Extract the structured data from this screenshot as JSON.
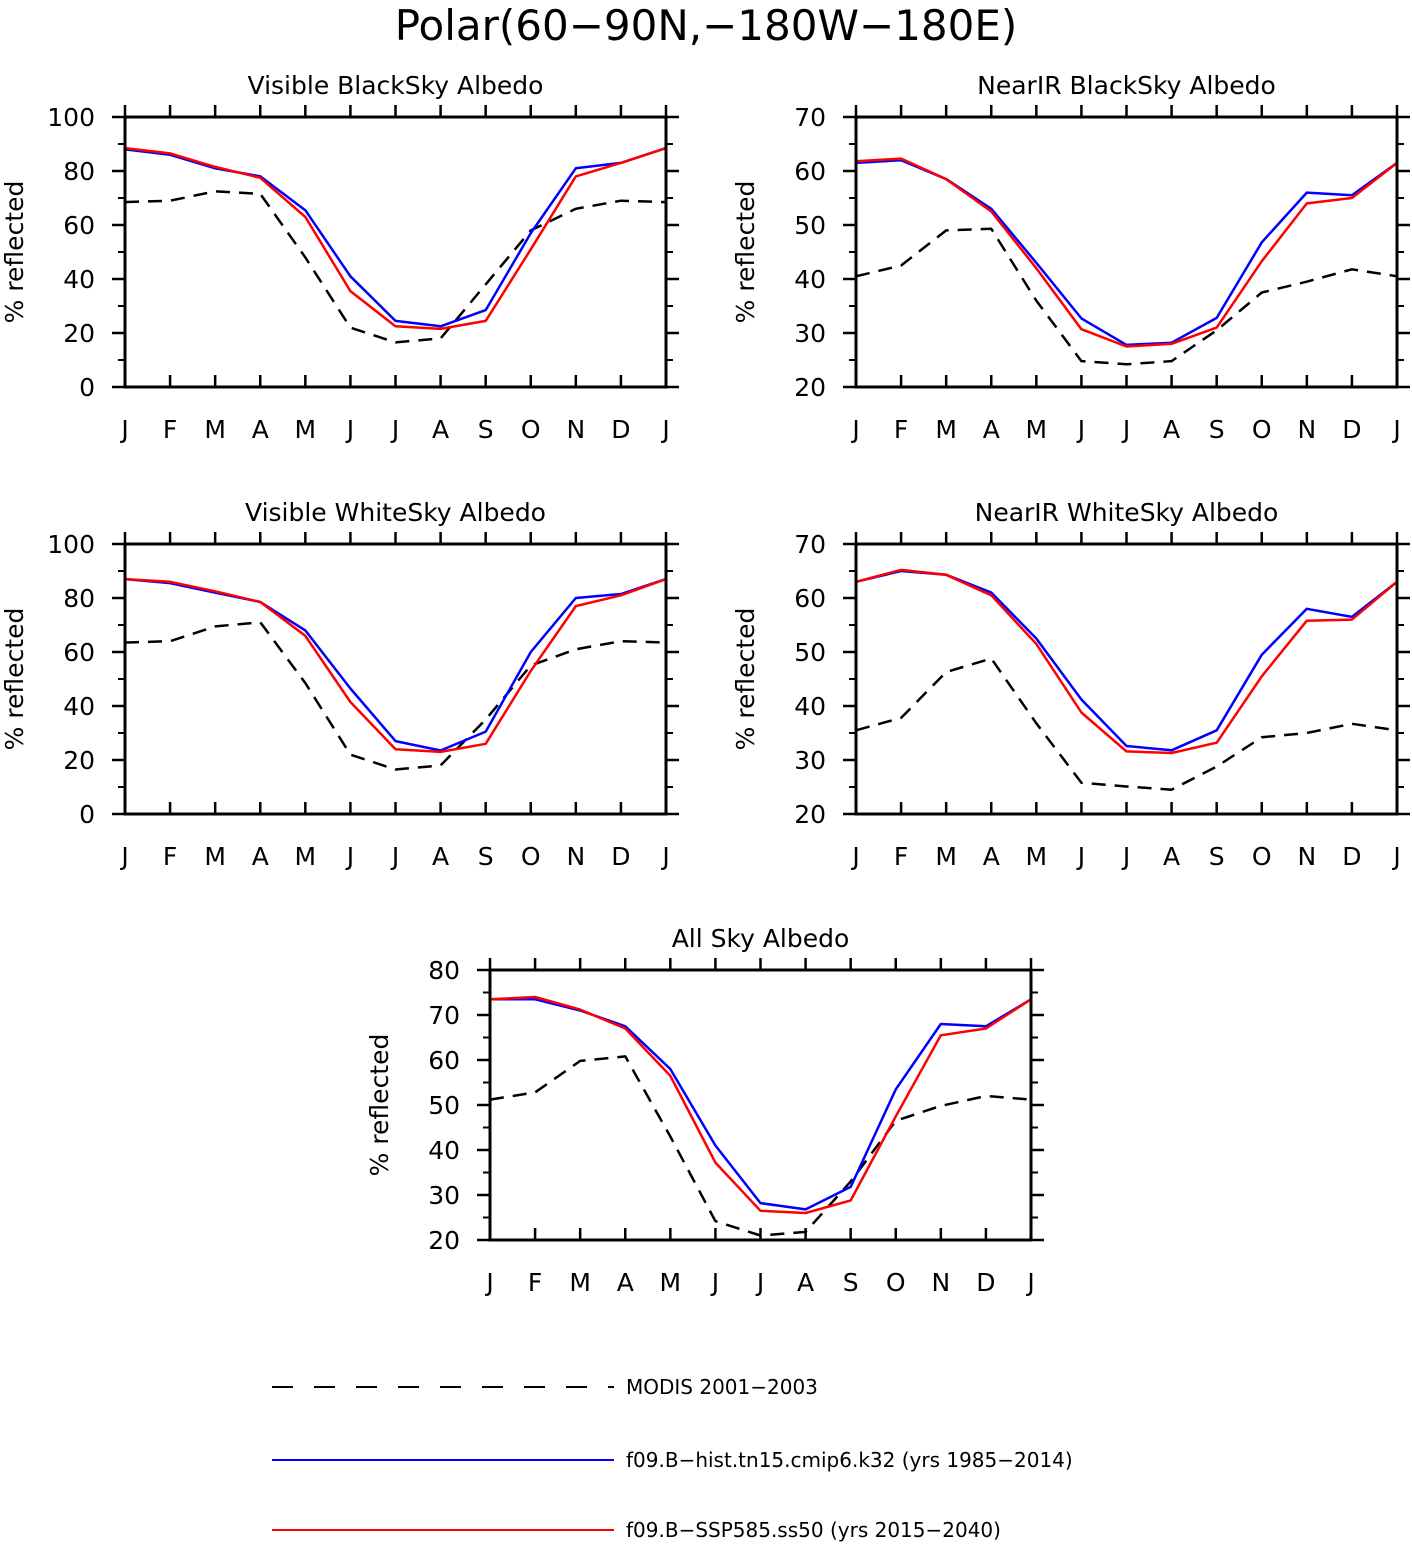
{
  "figure": {
    "title": "Polar(60−90N,−180W−180E)"
  },
  "legend": [
    {
      "label": "MODIS 2001−2003",
      "color": "#000000",
      "style": "dashed"
    },
    {
      "label": "f09.B−hist.tn15.cmip6.k32 (yrs 1985−2014)",
      "color": "#0000ff",
      "style": "solid"
    },
    {
      "label": "f09.B−SSP585.ss50 (yrs 2015−2040)",
      "color": "#ff0000",
      "style": "solid"
    }
  ],
  "chart_data": [
    {
      "type": "line",
      "title": "Visible BlackSky Albedo",
      "ylabel": "% reflected",
      "x": [
        "J",
        "F",
        "M",
        "A",
        "M",
        "J",
        "J",
        "A",
        "S",
        "O",
        "N",
        "D",
        "J"
      ],
      "ylim": [
        0,
        100
      ],
      "yticks": [
        0,
        20,
        40,
        60,
        80,
        100
      ],
      "series": [
        {
          "name": "MODIS 2001−2003",
          "color": "#000000",
          "dash": true,
          "values": [
            68.5,
            69,
            72.5,
            71.5,
            48,
            22,
            16.5,
            18,
            38,
            58,
            66,
            69,
            68.5
          ]
        },
        {
          "name": "f09.B−hist.tn15.cmip6.k32 (yrs 1985−2014)",
          "color": "#0000ff",
          "dash": false,
          "values": [
            88,
            86,
            81,
            78,
            65.5,
            41,
            24.5,
            22.5,
            28.5,
            57,
            81,
            83,
            88.5
          ]
        },
        {
          "name": "f09.B−SSP585.ss50 (yrs 2015−2040)",
          "color": "#ff0000",
          "dash": false,
          "values": [
            88.5,
            86.5,
            81.5,
            77.5,
            63,
            35.5,
            22.5,
            21.5,
            24.5,
            51,
            78,
            83,
            88.5
          ]
        }
      ]
    },
    {
      "type": "line",
      "title": "NearIR BlackSky Albedo",
      "ylabel": "% reflected",
      "x": [
        "J",
        "F",
        "M",
        "A",
        "M",
        "J",
        "J",
        "A",
        "S",
        "O",
        "N",
        "D",
        "J"
      ],
      "ylim": [
        20,
        70
      ],
      "yticks": [
        20,
        30,
        40,
        50,
        60,
        70
      ],
      "series": [
        {
          "name": "MODIS 2001−2003",
          "color": "#000000",
          "dash": true,
          "values": [
            40.5,
            42.5,
            49,
            49.3,
            36,
            24.8,
            24.2,
            24.8,
            30.5,
            37.5,
            39.5,
            41.8,
            40.5
          ]
        },
        {
          "name": "f09.B−hist.tn15.cmip6.k32 (yrs 1985−2014)",
          "color": "#0000ff",
          "dash": false,
          "values": [
            61.5,
            62,
            58.5,
            53,
            43,
            32.7,
            27.8,
            28.2,
            32.8,
            46.8,
            56,
            55.5,
            61.5
          ]
        },
        {
          "name": "f09.B−SSP585.ss50 (yrs 2015−2040)",
          "color": "#ff0000",
          "dash": false,
          "values": [
            61.8,
            62.3,
            58.5,
            52.5,
            42,
            30.7,
            27.5,
            28,
            31,
            43.3,
            54,
            55,
            61.5
          ]
        }
      ]
    },
    {
      "type": "line",
      "title": "Visible WhiteSky Albedo",
      "ylabel": "% reflected",
      "x": [
        "J",
        "F",
        "M",
        "A",
        "M",
        "J",
        "J",
        "A",
        "S",
        "O",
        "N",
        "D",
        "J"
      ],
      "ylim": [
        0,
        100
      ],
      "yticks": [
        0,
        20,
        40,
        60,
        80,
        100
      ],
      "series": [
        {
          "name": "MODIS 2001−2003",
          "color": "#000000",
          "dash": true,
          "values": [
            63.5,
            64,
            69.5,
            71,
            48.5,
            22,
            16.5,
            18,
            35,
            55,
            61,
            64,
            63.5
          ]
        },
        {
          "name": "f09.B−hist.tn15.cmip6.k32 (yrs 1985−2014)",
          "color": "#0000ff",
          "dash": false,
          "values": [
            87,
            85.5,
            82,
            78.5,
            68,
            46.5,
            27,
            23.5,
            30.5,
            60,
            80,
            81.5,
            87
          ]
        },
        {
          "name": "f09.B−SSP585.ss50 (yrs 2015−2040)",
          "color": "#ff0000",
          "dash": false,
          "values": [
            87,
            86,
            82.5,
            78.5,
            66,
            41.5,
            24,
            23,
            26,
            53,
            77,
            81,
            87
          ]
        }
      ]
    },
    {
      "type": "line",
      "title": "NearIR WhiteSky Albedo",
      "ylabel": "% reflected",
      "x": [
        "J",
        "F",
        "M",
        "A",
        "M",
        "J",
        "J",
        "A",
        "S",
        "O",
        "N",
        "D",
        "J"
      ],
      "ylim": [
        20,
        70
      ],
      "yticks": [
        20,
        30,
        40,
        50,
        60,
        70
      ],
      "series": [
        {
          "name": "MODIS 2001−2003",
          "color": "#000000",
          "dash": true,
          "values": [
            35.5,
            37.8,
            46.3,
            48.8,
            36.8,
            25.8,
            25.1,
            24.5,
            28.8,
            34.2,
            35,
            36.7,
            35.5
          ]
        },
        {
          "name": "f09.B−hist.tn15.cmip6.k32 (yrs 1985−2014)",
          "color": "#0000ff",
          "dash": false,
          "values": [
            63,
            65,
            64.3,
            61,
            52.5,
            41.2,
            32.6,
            31.8,
            35.5,
            49.5,
            58,
            56.5,
            63
          ]
        },
        {
          "name": "f09.B−SSP585.ss50 (yrs 2015−2040)",
          "color": "#ff0000",
          "dash": false,
          "values": [
            63,
            65.2,
            64.3,
            60.5,
            51.5,
            38.8,
            31.6,
            31.3,
            33.2,
            45.5,
            55.8,
            56,
            63
          ]
        }
      ]
    },
    {
      "type": "line",
      "title": "All Sky Albedo",
      "ylabel": "% reflected",
      "x": [
        "J",
        "F",
        "M",
        "A",
        "M",
        "J",
        "J",
        "A",
        "S",
        "O",
        "N",
        "D",
        "J"
      ],
      "ylim": [
        20,
        80
      ],
      "yticks": [
        20,
        30,
        40,
        50,
        60,
        70,
        80
      ],
      "series": [
        {
          "name": "MODIS 2001−2003",
          "color": "#000000",
          "dash": true,
          "values": [
            51.2,
            52.8,
            59.8,
            60.8,
            43,
            24.2,
            21,
            21.8,
            33,
            46.5,
            49.8,
            52,
            51.2
          ]
        },
        {
          "name": "f09.B−hist.tn15.cmip6.k32 (yrs 1985−2014)",
          "color": "#0000ff",
          "dash": false,
          "values": [
            73.5,
            73.5,
            71,
            67.5,
            58,
            41,
            28.2,
            26.8,
            31.8,
            53.5,
            68,
            67.5,
            73.5
          ]
        },
        {
          "name": "f09.B−SSP585.ss50 (yrs 2015−2040)",
          "color": "#ff0000",
          "dash": false,
          "values": [
            73.5,
            74,
            71.2,
            67,
            56.5,
            37.2,
            26.5,
            26,
            28.8,
            47.5,
            65.5,
            67,
            73.5
          ]
        }
      ]
    }
  ]
}
